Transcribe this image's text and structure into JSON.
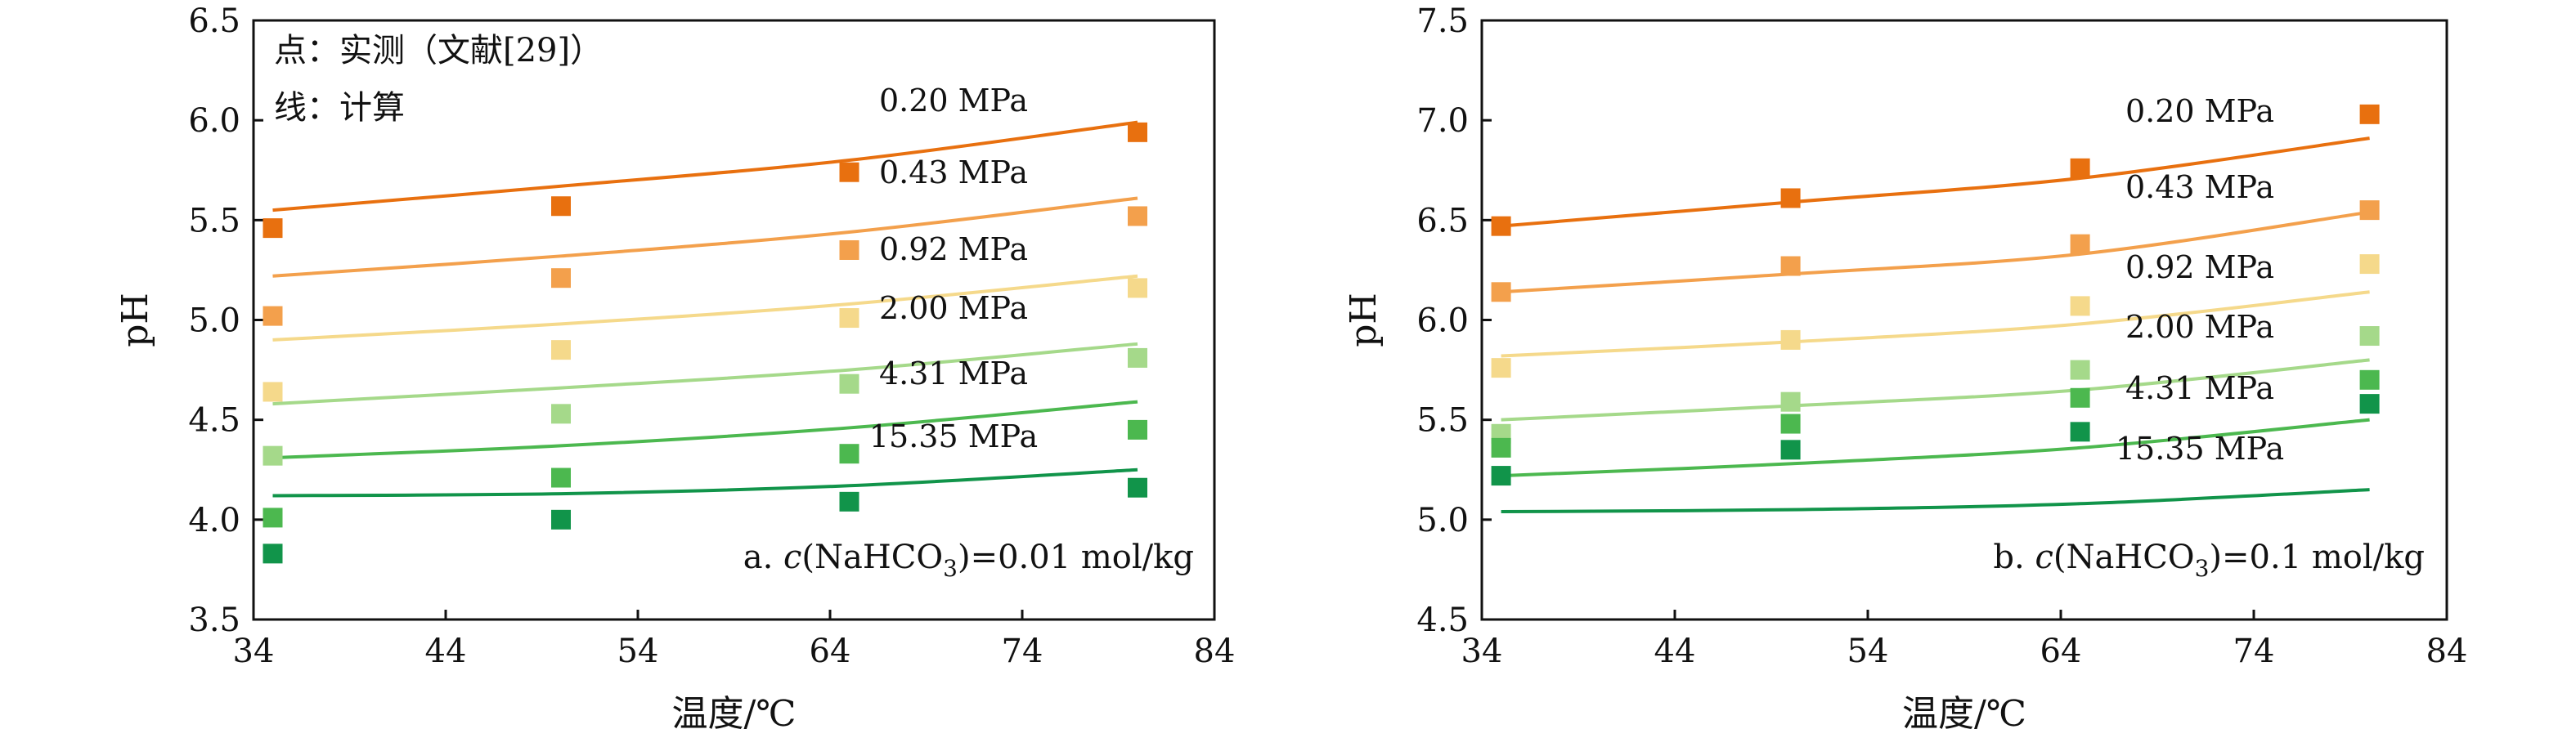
{
  "chart_data": [
    {
      "type": "scatter",
      "panel_caption": "a. c(NaHCO3)=0.01 mol/kg",
      "caption_parts": {
        "prefix": "a. ",
        "italic": "c",
        "pre_sub": "(NaHCO",
        "sub": "3",
        "post_sub": ")=0.01 mol/kg"
      },
      "legend_lines": [
        "点：实测（文献[29]）",
        "线：计算"
      ],
      "xlabel": "温度/℃",
      "ylabel": "pH",
      "xlim": [
        34,
        84
      ],
      "ylim": [
        3.5,
        6.5
      ],
      "xticks": [
        "34",
        "44",
        "54",
        "64",
        "74",
        "84"
      ],
      "yticks": [
        "3.5",
        "4.0",
        "4.5",
        "5.0",
        "5.5",
        "6.0",
        "6.5"
      ],
      "x": [
        35,
        50,
        65,
        80
      ],
      "series": [
        {
          "name": "0.20 MPa",
          "color": "#e8700f",
          "points": [
            5.46,
            5.57,
            5.74,
            5.94
          ],
          "line": [
            5.55,
            5.67,
            5.8,
            5.99
          ]
        },
        {
          "name": "0.43 MPa",
          "color": "#f3a04c",
          "points": [
            5.02,
            5.21,
            5.35,
            5.52
          ],
          "line": [
            5.22,
            5.32,
            5.44,
            5.61
          ]
        },
        {
          "name": "0.92 MPa",
          "color": "#f5d98b",
          "points": [
            4.64,
            4.85,
            5.01,
            5.16
          ],
          "line": [
            4.9,
            4.98,
            5.08,
            5.22
          ]
        },
        {
          "name": "2.00 MPa",
          "color": "#a5d98a",
          "points": [
            4.32,
            4.53,
            4.68,
            4.81
          ],
          "line": [
            4.58,
            4.66,
            4.75,
            4.88
          ]
        },
        {
          "name": "4.31 MPa",
          "color": "#4cb84f",
          "points": [
            4.01,
            4.21,
            4.33,
            4.45
          ],
          "line": [
            4.31,
            4.37,
            4.46,
            4.59
          ]
        },
        {
          "name": "15.35 MPa",
          "color": "#11944a",
          "points": [
            3.83,
            4.0,
            4.09,
            4.16
          ],
          "line": [
            4.12,
            4.13,
            4.17,
            4.25
          ]
        }
      ]
    },
    {
      "type": "scatter",
      "panel_caption": "b. c(NaHCO3)=0.1 mol/kg",
      "caption_parts": {
        "prefix": "b. ",
        "italic": "c",
        "pre_sub": "(NaHCO",
        "sub": "3",
        "post_sub": ")=0.1 mol/kg"
      },
      "xlabel": "温度/℃",
      "ylabel": "pH",
      "xlim": [
        34,
        84
      ],
      "ylim": [
        4.5,
        7.5
      ],
      "xticks": [
        "34",
        "44",
        "54",
        "64",
        "74",
        "84"
      ],
      "yticks": [
        "4.5",
        "5.0",
        "5.5",
        "6.0",
        "6.5",
        "7.0",
        "7.5"
      ],
      "x": [
        35,
        50,
        65,
        80
      ],
      "series": [
        {
          "name": "0.20 MPa",
          "color": "#e8700f",
          "points": [
            6.47,
            6.61,
            6.76,
            7.03
          ],
          "line": [
            6.47,
            6.59,
            6.71,
            6.91
          ]
        },
        {
          "name": "0.43 MPa",
          "color": "#f3a04c",
          "points": [
            6.14,
            6.27,
            6.38,
            6.55
          ],
          "line": [
            6.14,
            6.23,
            6.33,
            6.54
          ]
        },
        {
          "name": "0.92 MPa",
          "color": "#f5d98b",
          "points": [
            5.76,
            5.9,
            6.07,
            6.28
          ],
          "line": [
            5.82,
            5.89,
            5.98,
            6.14
          ]
        },
        {
          "name": "2.00 MPa",
          "color": "#a5d98a",
          "points": [
            5.43,
            5.59,
            5.75,
            5.92
          ],
          "line": [
            5.5,
            5.57,
            5.65,
            5.8
          ]
        },
        {
          "name": "4.31 MPa",
          "color": "#4cb84f",
          "points": [
            5.36,
            5.48,
            5.61,
            5.7
          ],
          "line": [
            5.22,
            5.28,
            5.36,
            5.5
          ]
        },
        {
          "name": "15.35 MPa",
          "color": "#11944a",
          "points": [
            5.22,
            5.35,
            5.44,
            5.58
          ],
          "line": [
            5.04,
            5.05,
            5.08,
            5.15
          ]
        }
      ]
    }
  ]
}
